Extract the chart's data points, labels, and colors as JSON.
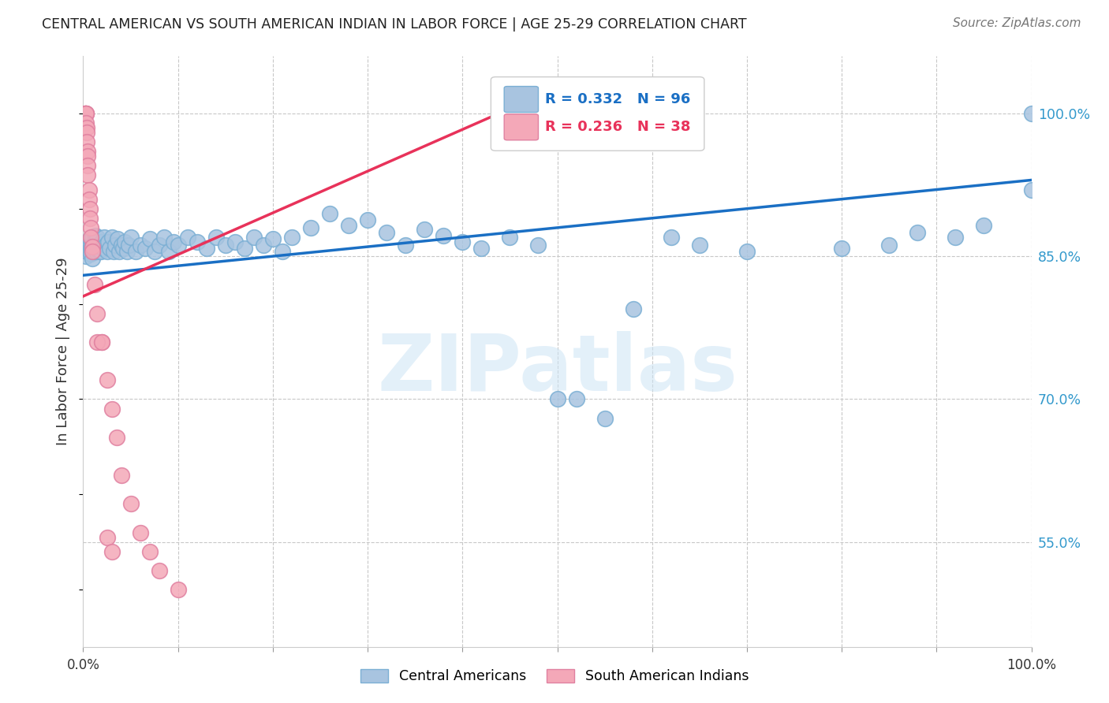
{
  "title": "CENTRAL AMERICAN VS SOUTH AMERICAN INDIAN IN LABOR FORCE | AGE 25-29 CORRELATION CHART",
  "source": "Source: ZipAtlas.com",
  "ylabel": "In Labor Force | Age 25-29",
  "ylabel_right_ticks": [
    "55.0%",
    "70.0%",
    "85.0%",
    "100.0%"
  ],
  "ylabel_right_vals": [
    0.55,
    0.7,
    0.85,
    1.0
  ],
  "xmin": 0.0,
  "xmax": 1.0,
  "ymin": 0.44,
  "ymax": 1.06,
  "R_blue": 0.332,
  "N_blue": 96,
  "R_pink": 0.236,
  "N_pink": 38,
  "legend_labels": [
    "Central Americans",
    "South American Indians"
  ],
  "blue_color": "#a8c4e0",
  "pink_color": "#f4a8b8",
  "blue_line_color": "#1a6fc4",
  "pink_line_color": "#e8325a",
  "legend_text_color": "#1a6fc4",
  "right_tick_color": "#3399cc",
  "watermark": "ZIPatlas",
  "blue_scatter_x": [
    0.003,
    0.004,
    0.005,
    0.005,
    0.006,
    0.006,
    0.007,
    0.007,
    0.008,
    0.008,
    0.009,
    0.009,
    0.01,
    0.01,
    0.01,
    0.011,
    0.011,
    0.012,
    0.012,
    0.013,
    0.013,
    0.014,
    0.014,
    0.015,
    0.015,
    0.016,
    0.016,
    0.017,
    0.018,
    0.019,
    0.02,
    0.021,
    0.022,
    0.024,
    0.025,
    0.026,
    0.028,
    0.03,
    0.032,
    0.034,
    0.036,
    0.038,
    0.04,
    0.042,
    0.044,
    0.046,
    0.048,
    0.05,
    0.055,
    0.06,
    0.065,
    0.07,
    0.075,
    0.08,
    0.085,
    0.09,
    0.095,
    0.1,
    0.11,
    0.12,
    0.13,
    0.14,
    0.15,
    0.16,
    0.17,
    0.18,
    0.19,
    0.2,
    0.21,
    0.22,
    0.24,
    0.26,
    0.28,
    0.3,
    0.32,
    0.34,
    0.36,
    0.38,
    0.4,
    0.42,
    0.45,
    0.48,
    0.5,
    0.52,
    0.55,
    0.58,
    0.62,
    0.65,
    0.7,
    0.8,
    0.85,
    0.88,
    0.92,
    0.95,
    1.0,
    1.0
  ],
  "blue_scatter_y": [
    0.85,
    0.855,
    0.86,
    0.865,
    0.858,
    0.862,
    0.855,
    0.868,
    0.86,
    0.853,
    0.862,
    0.858,
    0.87,
    0.855,
    0.848,
    0.862,
    0.855,
    0.865,
    0.858,
    0.872,
    0.86,
    0.855,
    0.865,
    0.87,
    0.858,
    0.862,
    0.856,
    0.855,
    0.86,
    0.855,
    0.865,
    0.858,
    0.87,
    0.862,
    0.855,
    0.865,
    0.858,
    0.87,
    0.855,
    0.862,
    0.868,
    0.855,
    0.862,
    0.858,
    0.865,
    0.855,
    0.862,
    0.87,
    0.855,
    0.862,
    0.858,
    0.868,
    0.855,
    0.862,
    0.87,
    0.855,
    0.865,
    0.862,
    0.87,
    0.865,
    0.858,
    0.87,
    0.862,
    0.865,
    0.858,
    0.87,
    0.862,
    0.868,
    0.855,
    0.87,
    0.88,
    0.895,
    0.882,
    0.888,
    0.875,
    0.862,
    0.878,
    0.872,
    0.865,
    0.858,
    0.87,
    0.862,
    0.7,
    0.7,
    0.68,
    0.795,
    0.87,
    0.862,
    0.855,
    0.858,
    0.862,
    0.875,
    0.87,
    0.882,
    1.0,
    0.92
  ],
  "pink_scatter_x": [
    0.002,
    0.002,
    0.002,
    0.003,
    0.003,
    0.003,
    0.003,
    0.004,
    0.004,
    0.004,
    0.005,
    0.005,
    0.005,
    0.005,
    0.006,
    0.006,
    0.007,
    0.007,
    0.008,
    0.008,
    0.01,
    0.01,
    0.012,
    0.015,
    0.02,
    0.025,
    0.03,
    0.035,
    0.04,
    0.05,
    0.06,
    0.07,
    0.08,
    0.1,
    0.015,
    0.02,
    0.025,
    0.03
  ],
  "pink_scatter_y": [
    1.0,
    1.0,
    1.0,
    1.0,
    1.0,
    1.0,
    0.99,
    0.985,
    0.98,
    0.97,
    0.96,
    0.955,
    0.945,
    0.935,
    0.92,
    0.91,
    0.9,
    0.89,
    0.88,
    0.87,
    0.86,
    0.855,
    0.82,
    0.79,
    0.76,
    0.72,
    0.69,
    0.66,
    0.62,
    0.59,
    0.56,
    0.54,
    0.52,
    0.5,
    0.76,
    0.76,
    0.555,
    0.54
  ],
  "blue_trend_x0": 0.0,
  "blue_trend_x1": 1.0,
  "blue_trend_y0": 0.83,
  "blue_trend_y1": 0.93,
  "pink_trend_x0": 0.0,
  "pink_trend_x1": 0.45,
  "pink_trend_y0": 0.808,
  "pink_trend_y1": 1.005
}
